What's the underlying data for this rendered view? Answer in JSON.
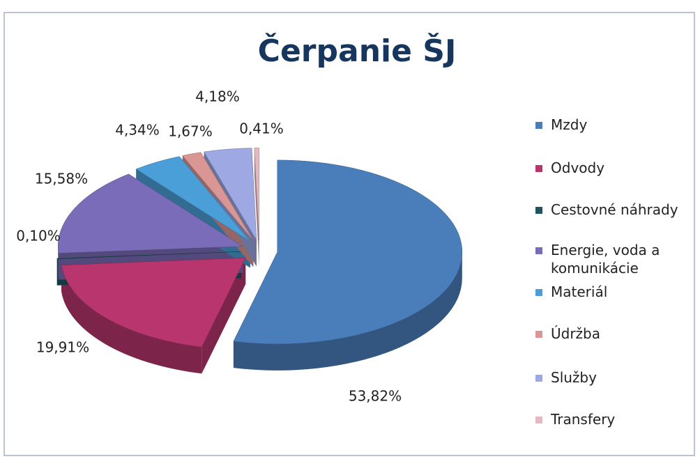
{
  "chart_data": {
    "type": "pie",
    "title": "Čerpanie ŠJ",
    "categories": [
      "Mzdy",
      "Odvody",
      "Cestovné náhrady",
      "Energie, voda a komunikácie",
      "Materiál",
      "Údržba",
      "Služby",
      "Transfery"
    ],
    "values": [
      53.82,
      19.91,
      0.1,
      15.58,
      4.34,
      1.67,
      4.18,
      0.41
    ],
    "value_labels": [
      "53,82%",
      "19,91%",
      "0,10%",
      "15,58%",
      "4,34%",
      "1,67%",
      "4,18%",
      "0,41%"
    ],
    "colors": [
      "#4a7ebb",
      "#b8356d",
      "#1f5560",
      "#7a6cb8",
      "#4a9fd8",
      "#d99694",
      "#9ea8e2",
      "#e6b8c2"
    ],
    "legend": "right"
  }
}
